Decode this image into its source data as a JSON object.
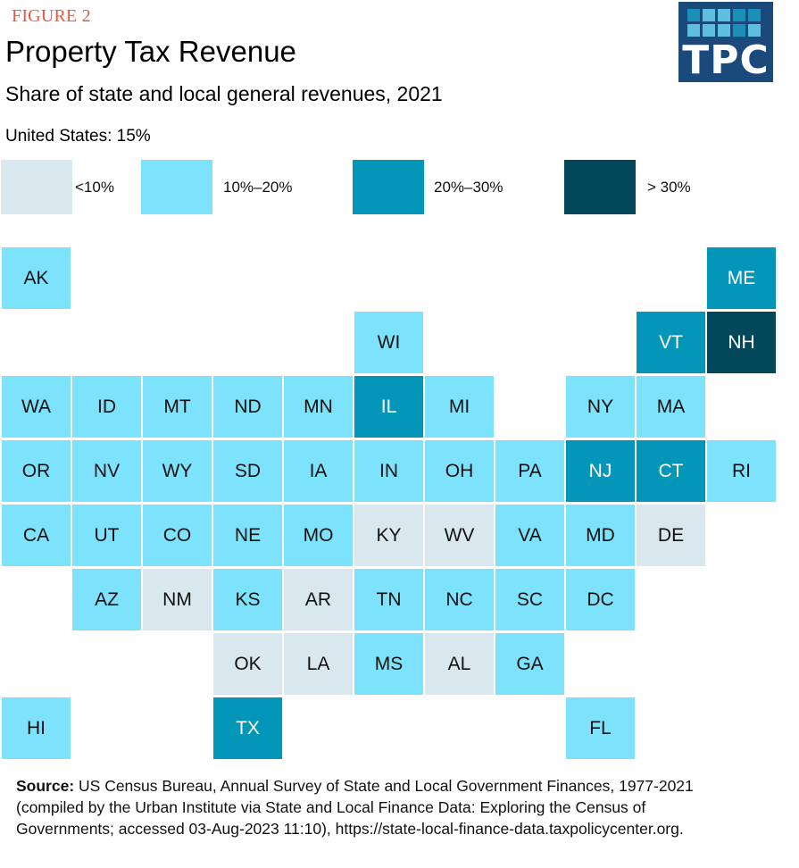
{
  "header": {
    "figure_label": "FIGURE 2",
    "title": "Property Tax Revenue",
    "subtitle": "Share of state and local general revenues, 2021",
    "us_note": "United States: 15%"
  },
  "logo": {
    "text": "TPC",
    "colors": {
      "background": "#1a4a7c",
      "dark_square": "#1a8fb8",
      "light_square": "#5fbfe0"
    },
    "squares": [
      "dark",
      "light",
      "light",
      "dark",
      "dark",
      "light",
      "light",
      "light",
      "dark",
      "light"
    ]
  },
  "chart_data": {
    "type": "heatmap",
    "subtype": "tile-grid-map",
    "title": "Property Tax Revenue",
    "subtitle": "Share of state and local general revenues, 2021",
    "note": "United States: 15%",
    "legend": [
      {
        "key": "lt10",
        "label": "<10%",
        "color": "#d9e8ee",
        "text_color": "#111111"
      },
      {
        "key": "10to20",
        "label": "10%–20%",
        "color": "#7de3fc",
        "text_color": "#111111"
      },
      {
        "key": "20to30",
        "label": "20%–30%",
        "color": "#0396b8",
        "text_color": "#ffffff"
      },
      {
        "key": "gt30",
        "label": "> 30%",
        "color": "#03475a",
        "text_color": "#ffffff"
      }
    ],
    "legend_placement": "top",
    "tiles": [
      {
        "state": "AK",
        "row": 0,
        "col": 0,
        "category": "10to20"
      },
      {
        "state": "ME",
        "row": 0,
        "col": 10,
        "category": "20to30"
      },
      {
        "state": "WI",
        "row": 1,
        "col": 5,
        "category": "10to20"
      },
      {
        "state": "VT",
        "row": 1,
        "col": 9,
        "category": "20to30"
      },
      {
        "state": "NH",
        "row": 1,
        "col": 10,
        "category": "gt30"
      },
      {
        "state": "WA",
        "row": 2,
        "col": 0,
        "category": "10to20"
      },
      {
        "state": "ID",
        "row": 2,
        "col": 1,
        "category": "10to20"
      },
      {
        "state": "MT",
        "row": 2,
        "col": 2,
        "category": "10to20"
      },
      {
        "state": "ND",
        "row": 2,
        "col": 3,
        "category": "10to20"
      },
      {
        "state": "MN",
        "row": 2,
        "col": 4,
        "category": "10to20"
      },
      {
        "state": "IL",
        "row": 2,
        "col": 5,
        "category": "20to30"
      },
      {
        "state": "MI",
        "row": 2,
        "col": 6,
        "category": "10to20"
      },
      {
        "state": "NY",
        "row": 2,
        "col": 8,
        "category": "10to20"
      },
      {
        "state": "MA",
        "row": 2,
        "col": 9,
        "category": "10to20"
      },
      {
        "state": "OR",
        "row": 3,
        "col": 0,
        "category": "10to20"
      },
      {
        "state": "NV",
        "row": 3,
        "col": 1,
        "category": "10to20"
      },
      {
        "state": "WY",
        "row": 3,
        "col": 2,
        "category": "10to20"
      },
      {
        "state": "SD",
        "row": 3,
        "col": 3,
        "category": "10to20"
      },
      {
        "state": "IA",
        "row": 3,
        "col": 4,
        "category": "10to20"
      },
      {
        "state": "IN",
        "row": 3,
        "col": 5,
        "category": "10to20"
      },
      {
        "state": "OH",
        "row": 3,
        "col": 6,
        "category": "10to20"
      },
      {
        "state": "PA",
        "row": 3,
        "col": 7,
        "category": "10to20"
      },
      {
        "state": "NJ",
        "row": 3,
        "col": 8,
        "category": "20to30"
      },
      {
        "state": "CT",
        "row": 3,
        "col": 9,
        "category": "20to30"
      },
      {
        "state": "RI",
        "row": 3,
        "col": 10,
        "category": "10to20"
      },
      {
        "state": "CA",
        "row": 4,
        "col": 0,
        "category": "10to20"
      },
      {
        "state": "UT",
        "row": 4,
        "col": 1,
        "category": "10to20"
      },
      {
        "state": "CO",
        "row": 4,
        "col": 2,
        "category": "10to20"
      },
      {
        "state": "NE",
        "row": 4,
        "col": 3,
        "category": "10to20"
      },
      {
        "state": "MO",
        "row": 4,
        "col": 4,
        "category": "10to20"
      },
      {
        "state": "KY",
        "row": 4,
        "col": 5,
        "category": "lt10"
      },
      {
        "state": "WV",
        "row": 4,
        "col": 6,
        "category": "lt10"
      },
      {
        "state": "VA",
        "row": 4,
        "col": 7,
        "category": "10to20"
      },
      {
        "state": "MD",
        "row": 4,
        "col": 8,
        "category": "10to20"
      },
      {
        "state": "DE",
        "row": 4,
        "col": 9,
        "category": "lt10"
      },
      {
        "state": "AZ",
        "row": 5,
        "col": 1,
        "category": "10to20"
      },
      {
        "state": "NM",
        "row": 5,
        "col": 2,
        "category": "lt10"
      },
      {
        "state": "KS",
        "row": 5,
        "col": 3,
        "category": "10to20"
      },
      {
        "state": "AR",
        "row": 5,
        "col": 4,
        "category": "lt10"
      },
      {
        "state": "TN",
        "row": 5,
        "col": 5,
        "category": "10to20"
      },
      {
        "state": "NC",
        "row": 5,
        "col": 6,
        "category": "10to20"
      },
      {
        "state": "SC",
        "row": 5,
        "col": 7,
        "category": "10to20"
      },
      {
        "state": "DC",
        "row": 5,
        "col": 8,
        "category": "10to20"
      },
      {
        "state": "OK",
        "row": 6,
        "col": 3,
        "category": "lt10"
      },
      {
        "state": "LA",
        "row": 6,
        "col": 4,
        "category": "lt10"
      },
      {
        "state": "MS",
        "row": 6,
        "col": 5,
        "category": "10to20"
      },
      {
        "state": "AL",
        "row": 6,
        "col": 6,
        "category": "lt10"
      },
      {
        "state": "GA",
        "row": 6,
        "col": 7,
        "category": "10to20"
      },
      {
        "state": "HI",
        "row": 7,
        "col": 0,
        "category": "10to20"
      },
      {
        "state": "TX",
        "row": 7,
        "col": 3,
        "category": "20to30"
      },
      {
        "state": "FL",
        "row": 7,
        "col": 8,
        "category": "10to20"
      }
    ]
  },
  "source": {
    "label": "Source:",
    "text": " US Census Bureau, Annual Survey of State and Local Government Finances, 1977-2021 (compiled by the Urban Institute via State and Local Finance Data: Exploring the Census of Governments; accessed 03-Aug-2023 11:10), https://state-local-finance-data.taxpolicycenter.org."
  }
}
